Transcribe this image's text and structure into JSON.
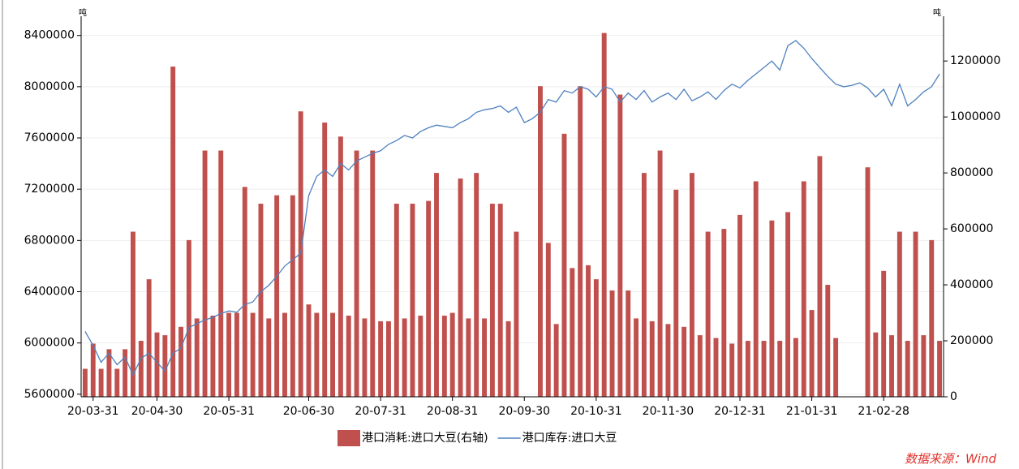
{
  "chart_data": {
    "type": "bar",
    "ylabel": "吨",
    "y2label": "吨",
    "categories": [
      null,
      "20-03-31",
      null,
      null,
      null,
      null,
      null,
      null,
      null,
      "20-04-30",
      null,
      null,
      null,
      null,
      null,
      null,
      null,
      null,
      "20-05-31",
      null,
      null,
      null,
      null,
      null,
      null,
      null,
      null,
      null,
      "20-06-30",
      null,
      null,
      null,
      null,
      null,
      null,
      null,
      null,
      "20-07-31",
      null,
      null,
      null,
      null,
      null,
      null,
      null,
      null,
      "20-08-31",
      null,
      null,
      null,
      null,
      null,
      null,
      null,
      null,
      "20-09-30",
      null,
      null,
      null,
      null,
      null,
      null,
      null,
      null,
      "20-10-31",
      null,
      null,
      null,
      null,
      null,
      null,
      null,
      null,
      "20-11-30",
      null,
      null,
      null,
      null,
      null,
      null,
      null,
      null,
      "20-12-31",
      null,
      null,
      null,
      null,
      null,
      null,
      null,
      null,
      "21-01-31",
      null,
      null,
      null,
      null,
      null,
      null,
      null,
      null,
      "21-02-28",
      null,
      null,
      null,
      null,
      null,
      null,
      null
    ],
    "series": [
      {
        "name": "港口消耗:进口大豆(右轴)",
        "type": "bar",
        "axis": "y2",
        "color": "#c0504d",
        "values": [
          100000,
          190000,
          100000,
          170000,
          100000,
          170000,
          590000,
          200000,
          420000,
          230000,
          220000,
          1180000,
          250000,
          560000,
          280000,
          880000,
          290000,
          880000,
          300000,
          300000,
          750000,
          300000,
          690000,
          280000,
          720000,
          300000,
          720000,
          1020000,
          330000,
          300000,
          980000,
          300000,
          930000,
          290000,
          880000,
          280000,
          880000,
          270000,
          270000,
          690000,
          280000,
          690000,
          290000,
          700000,
          800000,
          290000,
          300000,
          780000,
          280000,
          800000,
          280000,
          690000,
          690000,
          270000,
          590000,
          null,
          null,
          1110000,
          550000,
          260000,
          940000,
          460000,
          1110000,
          470000,
          420000,
          1300000,
          380000,
          1080000,
          380000,
          280000,
          800000,
          270000,
          880000,
          260000,
          740000,
          250000,
          800000,
          220000,
          590000,
          210000,
          600000,
          190000,
          650000,
          200000,
          770000,
          200000,
          630000,
          200000,
          660000,
          210000,
          770000,
          310000,
          860000,
          400000,
          210000,
          null,
          null,
          null,
          820000,
          230000,
          450000,
          220000,
          590000,
          200000,
          590000,
          220000,
          560000,
          200000
        ]
      },
      {
        "name": "港口库存:进口大豆",
        "type": "line",
        "axis": "y",
        "color": "#4f81bd",
        "values": [
          6090000,
          5980000,
          5850000,
          5920000,
          5830000,
          5890000,
          5750000,
          5880000,
          5920000,
          5850000,
          5780000,
          5920000,
          5960000,
          6120000,
          6150000,
          6180000,
          6200000,
          6230000,
          6250000,
          6240000,
          6300000,
          6320000,
          6400000,
          6450000,
          6520000,
          6600000,
          6650000,
          6700000,
          7150000,
          7300000,
          7350000,
          7300000,
          7400000,
          7350000,
          7420000,
          7450000,
          7480000,
          7500000,
          7550000,
          7580000,
          7620000,
          7600000,
          7650000,
          7680000,
          7700000,
          7690000,
          7680000,
          7720000,
          7750000,
          7800000,
          7820000,
          7830000,
          7850000,
          7800000,
          7840000,
          7720000,
          7750000,
          7800000,
          7900000,
          7880000,
          7970000,
          7950000,
          8000000,
          7980000,
          7920000,
          8000000,
          7980000,
          7880000,
          7950000,
          7900000,
          7970000,
          7880000,
          7920000,
          7950000,
          7900000,
          7980000,
          7890000,
          7920000,
          7960000,
          7900000,
          7970000,
          8020000,
          7990000,
          8050000,
          8100000,
          8150000,
          8200000,
          8130000,
          8320000,
          8360000,
          8300000,
          8220000,
          8150000,
          8080000,
          8020000,
          8000000,
          8010000,
          8030000,
          7990000,
          7920000,
          7980000,
          7850000,
          8020000,
          7850000,
          7900000,
          7960000,
          8000000,
          8100000
        ]
      }
    ],
    "ylim": [
      5580000,
      8550000
    ],
    "yticks": [
      5600000,
      6000000,
      6400000,
      6800000,
      7200000,
      7600000,
      8000000,
      8400000
    ],
    "y2lim": [
      0,
      1360000
    ],
    "y2ticks": [
      0,
      200000,
      400000,
      600000,
      800000,
      1000000,
      1200000
    ],
    "grid": true,
    "legend": "bottom",
    "source": "数据来源：Wind"
  }
}
